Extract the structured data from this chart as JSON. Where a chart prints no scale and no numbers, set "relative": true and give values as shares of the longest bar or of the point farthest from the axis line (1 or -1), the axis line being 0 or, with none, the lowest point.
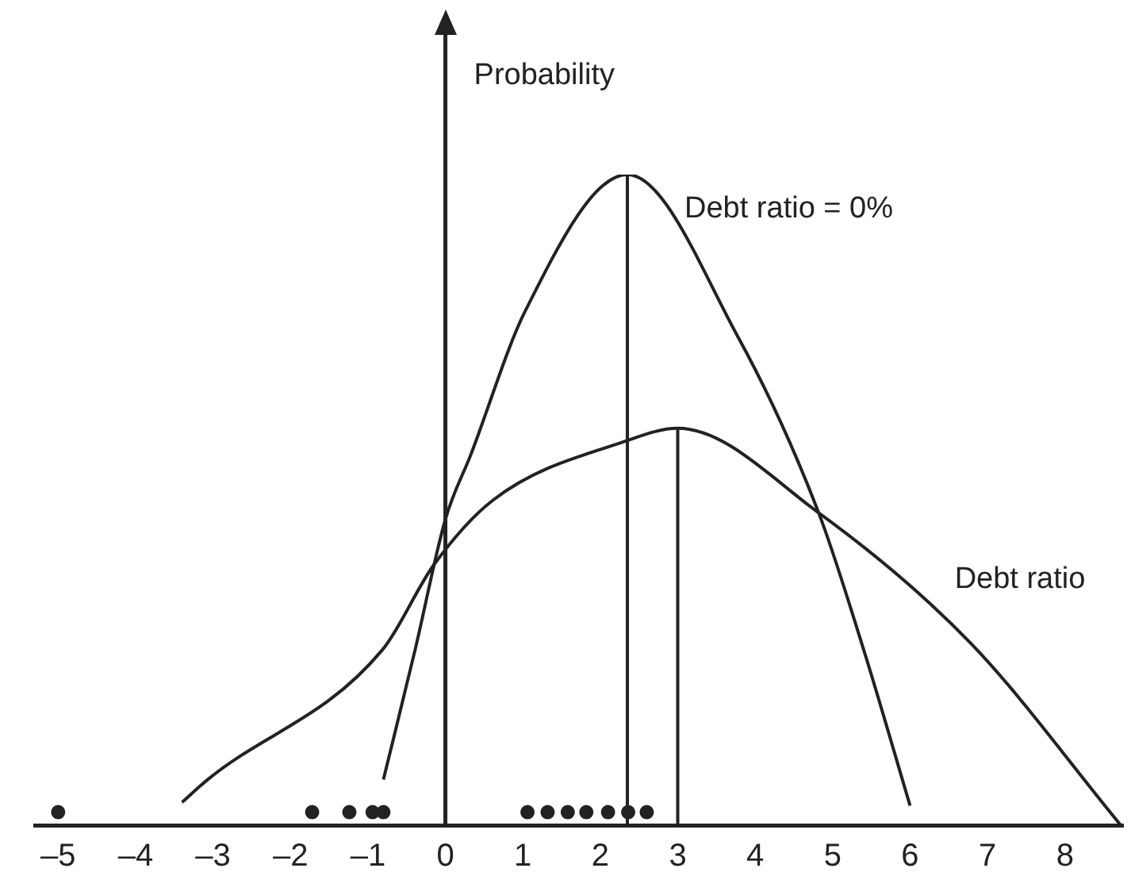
{
  "chart_data": {
    "type": "line",
    "ylabel": "Probability",
    "relative": true,
    "xlim": [
      -5.3,
      8.75
    ],
    "xticks": [
      {
        "value": -5,
        "label": "–5"
      },
      {
        "value": -4,
        "label": "–4"
      },
      {
        "value": -3,
        "label": "–3"
      },
      {
        "value": -2,
        "label": "–2"
      },
      {
        "value": -1,
        "label": "–1"
      },
      0,
      1,
      2,
      3,
      4,
      5,
      6,
      7,
      8
    ],
    "tick_labels": "x",
    "legend": false,
    "series": [
      {
        "name": "Debt ratio = 0%",
        "color": "#222222",
        "x": [
          -0.8,
          -0.39,
          0,
          0.33,
          1.03,
          2.35,
          3.78,
          4.82,
          5.4,
          6.0
        ],
        "values": [
          0.07,
          0.27,
          0.47,
          0.57,
          0.79,
          1,
          0.75,
          0.48,
          0.27,
          0.03
        ]
      },
      {
        "name": "Debt ratio",
        "color": "#222222",
        "x": [
          -3.4,
          -3.07,
          -0.81,
          -0.15,
          0.62,
          2.32,
          3,
          4.82,
          6.78,
          8.72
        ],
        "values": [
          0.035,
          0.07,
          0.27,
          0.4,
          0.5,
          0.59,
          0.61,
          0.48,
          0.28,
          0
        ]
      },
      {
        "color": "#222222",
        "x": [
          2.35,
          2.35
        ],
        "values": [
          0,
          1
        ]
      },
      {
        "color": "#222222",
        "x": [
          3,
          3
        ],
        "values": [
          0,
          0.61
        ]
      },
      {
        "type": "scatter",
        "marker": "circle",
        "color": "#222222",
        "x": [
          -5,
          -1.72,
          -1.24,
          -0.94,
          -0.8,
          1.06,
          1.32,
          1.58,
          1.82,
          2.1,
          2.36,
          2.6
        ],
        "values": [
          0.02,
          0.02,
          0.02,
          0.02,
          0.02,
          0.02,
          0.02,
          0.02,
          0.02,
          0.02,
          0.02,
          0.02
        ]
      }
    ]
  }
}
